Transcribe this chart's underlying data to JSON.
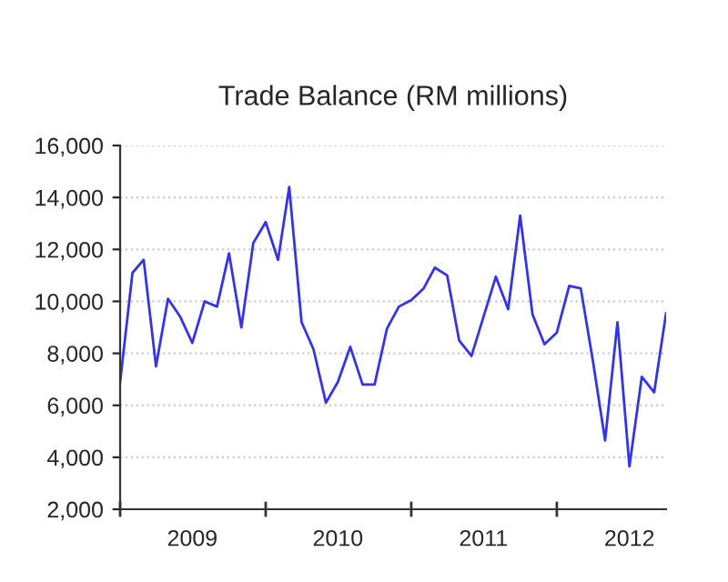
{
  "chart_data": {
    "type": "line",
    "title": "Trade Balance (RM millions)",
    "x": [
      "2009-01",
      "2009-02",
      "2009-03",
      "2009-04",
      "2009-05",
      "2009-06",
      "2009-07",
      "2009-08",
      "2009-09",
      "2009-10",
      "2009-11",
      "2009-12",
      "2010-01",
      "2010-02",
      "2010-03",
      "2010-04",
      "2010-05",
      "2010-06",
      "2010-07",
      "2010-08",
      "2010-09",
      "2010-10",
      "2010-11",
      "2010-12",
      "2011-01",
      "2011-02",
      "2011-03",
      "2011-04",
      "2011-05",
      "2011-06",
      "2011-07",
      "2011-08",
      "2011-09",
      "2011-10",
      "2011-11",
      "2011-12",
      "2012-01",
      "2012-02",
      "2012-03",
      "2012-04",
      "2012-05",
      "2012-06",
      "2012-07",
      "2012-08",
      "2012-09",
      "2012-10"
    ],
    "series": [
      {
        "color": "#3333ee",
        "values": [
          6900,
          11100,
          11600,
          7500,
          10100,
          9400,
          8400,
          10000,
          9800,
          11850,
          9000,
          12250,
          13050,
          11600,
          14400,
          9200,
          8150,
          6100,
          6900,
          8250,
          6800,
          6800,
          8950,
          9800,
          10050,
          10500,
          11300,
          11000,
          8500,
          7900,
          9400,
          10950,
          9700,
          13300,
          9500,
          8350,
          8800,
          10600,
          10500,
          7650,
          4650,
          9200,
          3650,
          7100,
          6500,
          9550
        ]
      }
    ],
    "xlim": [
      "2009-01",
      "2012-10"
    ],
    "xticks": [
      {
        "value": "2009-01",
        "label": null
      },
      {
        "value": "2009-07",
        "label": "2009"
      },
      {
        "value": "2010-01",
        "label": null
      },
      {
        "value": "2010-07",
        "label": "2010"
      },
      {
        "value": "2011-01",
        "label": null
      },
      {
        "value": "2011-07",
        "label": "2011"
      },
      {
        "value": "2012-01",
        "label": null
      },
      {
        "value": "2012-07",
        "label": "2012"
      }
    ],
    "ylim": [
      2000,
      16000
    ],
    "yticks": [
      {
        "value": 2000,
        "label": "2,000"
      },
      {
        "value": 4000,
        "label": "4,000"
      },
      {
        "value": 6000,
        "label": "6,000"
      },
      {
        "value": 8000,
        "label": "8,000"
      },
      {
        "value": 10000,
        "label": "10,000"
      },
      {
        "value": 12000,
        "label": "12,000"
      },
      {
        "value": 14000,
        "label": "14,000"
      },
      {
        "value": 16000,
        "label": "16,000"
      }
    ],
    "grid": "y",
    "marker": "none",
    "line_style": "solid"
  }
}
